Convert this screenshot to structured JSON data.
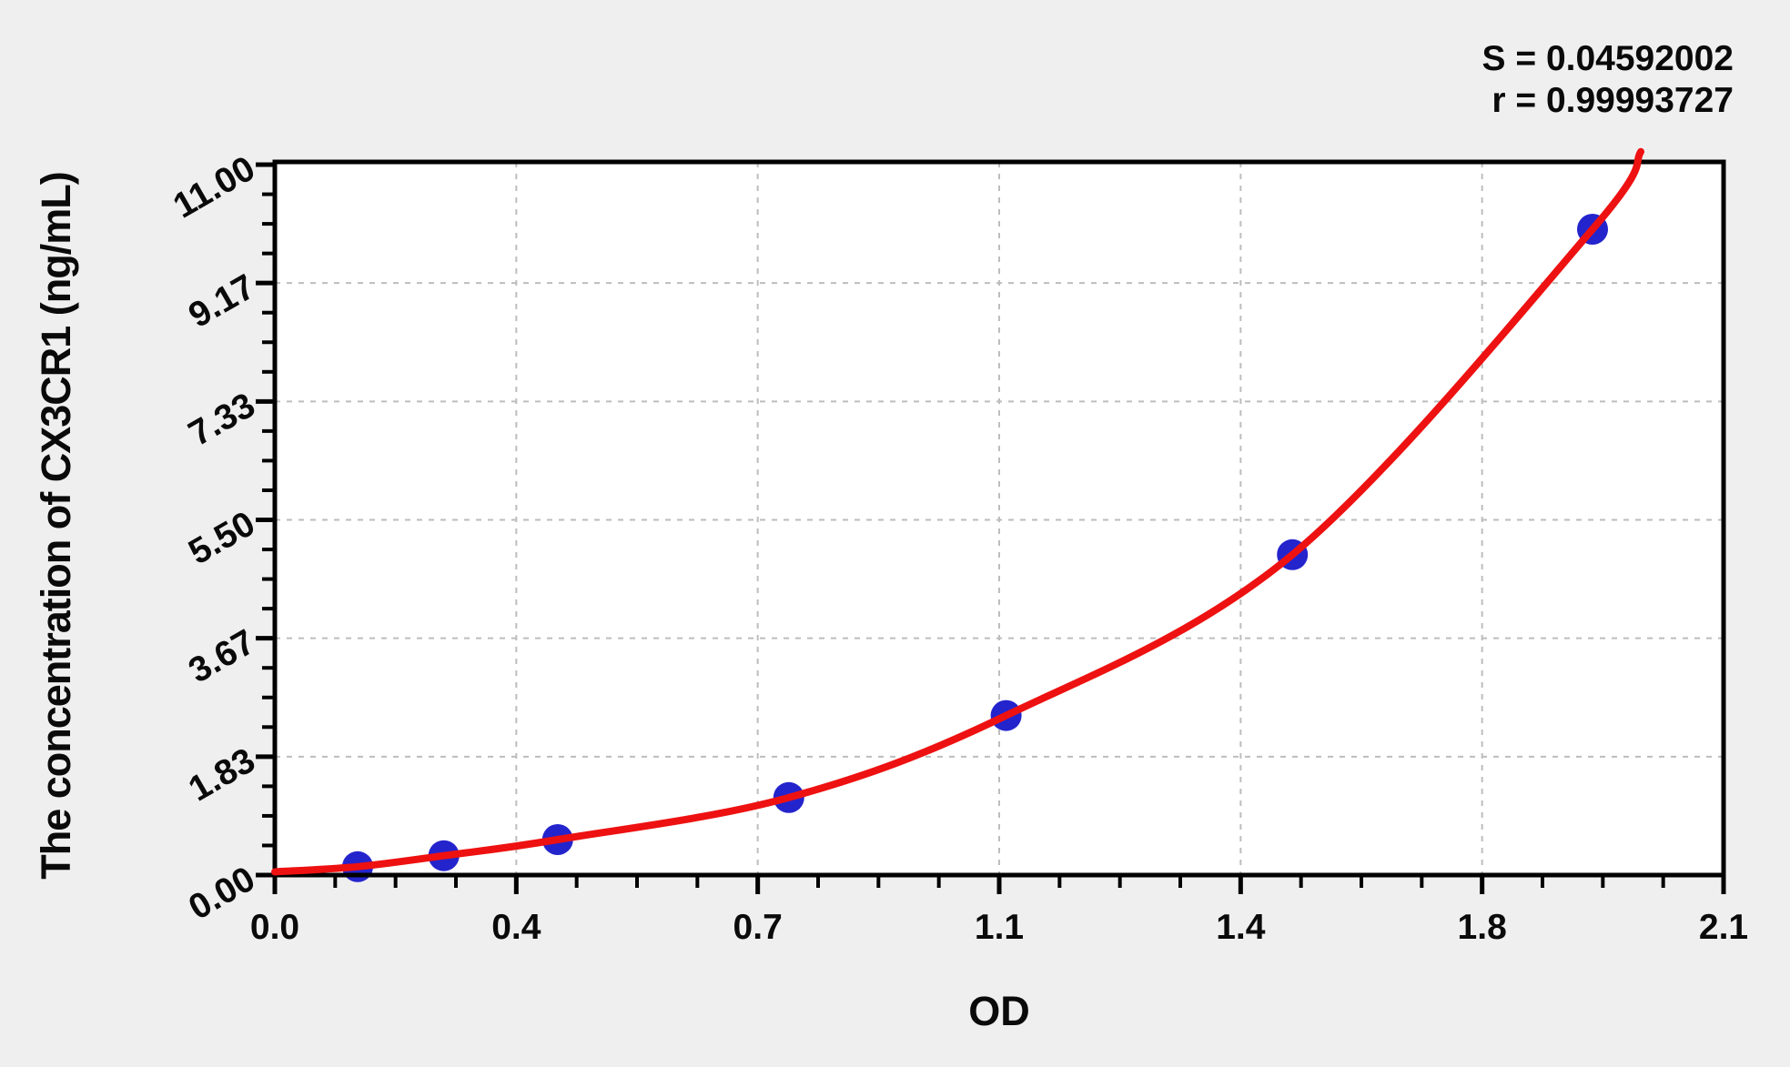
{
  "figure": {
    "background_color": "#f0eff0",
    "plot_background_color": "#ffffff",
    "axis_color": "#000000",
    "grid_color": "#bdbdbd",
    "annotation": {
      "s_label": "S = 0.04592002",
      "r_label": "r = 0.99993727"
    }
  },
  "chart_data": {
    "type": "scatter",
    "title": "",
    "xlabel": "OD",
    "ylabel": "The concentration of CX3CR1 (ng/mL)",
    "xlim": [
      0,
      2.1
    ],
    "ylim": [
      0,
      11
    ],
    "x_major_ticks": [
      0,
      0.35,
      0.7,
      1.05,
      1.4,
      1.75,
      2.1
    ],
    "x_tick_labels": [
      "0.0",
      "0.4",
      "0.7",
      "1.1",
      "1.4",
      "1.8",
      "2.1"
    ],
    "y_major_ticks": [
      0,
      1.8333,
      3.6667,
      5.5,
      7.3333,
      9.1667,
      11
    ],
    "y_tick_labels": [
      "0.00",
      "1.83",
      "3.67",
      "5.50",
      "7.33",
      "9.17",
      "11.00"
    ],
    "minor_divisions_per_major": 4,
    "grid": {
      "style": "dashed",
      "on": "major-ticks"
    },
    "legend_position": "none",
    "stats": {
      "S": "0.04592002",
      "r": "0.99993727"
    },
    "series": [
      {
        "name": "standard-points",
        "type": "scatter",
        "marker": "circle",
        "color": "#2424cd",
        "points_od_conc": [
          [
            0.12,
            0.13
          ],
          [
            0.245,
            0.3
          ],
          [
            0.41,
            0.55
          ],
          [
            0.745,
            1.2
          ],
          [
            1.06,
            2.47
          ],
          [
            1.475,
            4.96
          ],
          [
            1.91,
            10.0
          ]
        ]
      },
      {
        "name": "fitted-curve",
        "type": "line",
        "color": "#ee1111",
        "points_od_conc": [
          [
            0.0,
            0.05
          ],
          [
            0.12,
            0.13
          ],
          [
            0.245,
            0.3
          ],
          [
            0.41,
            0.55
          ],
          [
            0.745,
            1.2
          ],
          [
            1.06,
            2.47
          ],
          [
            1.475,
            4.96
          ],
          [
            1.91,
            10.0
          ],
          [
            1.98,
            11.2
          ]
        ]
      }
    ]
  }
}
